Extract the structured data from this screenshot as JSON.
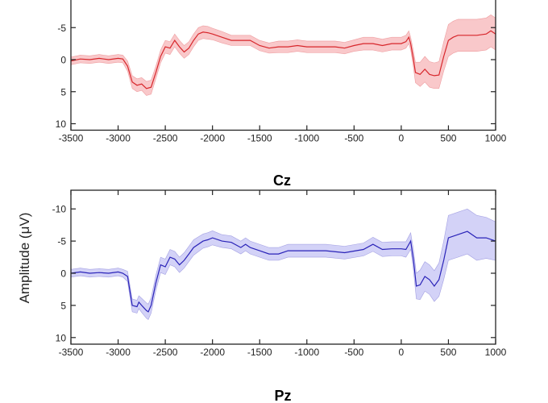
{
  "chart_data": [
    {
      "type": "line",
      "title": "",
      "xlabel": "",
      "ylabel": "Amplitude (μV)",
      "xlim": [
        -3500,
        1000
      ],
      "ylim": [
        -12.9,
        11
      ],
      "y_inverted": true,
      "xticks": [
        "-3500",
        "-3000",
        "-2500",
        "-2000",
        "-1500",
        "-1000",
        "-500",
        "0",
        "500",
        "1000"
      ],
      "yticks": [
        "-5",
        "0",
        "5",
        "10"
      ],
      "series": [
        {
          "name": "mean",
          "color": "#d7262b",
          "band_color": "#f7b6b8",
          "x": [
            -3500,
            -3400,
            -3300,
            -3200,
            -3100,
            -3000,
            -2950,
            -2900,
            -2850,
            -2800,
            -2750,
            -2700,
            -2650,
            -2600,
            -2550,
            -2500,
            -2450,
            -2400,
            -2350,
            -2300,
            -2250,
            -2200,
            -2150,
            -2100,
            -2050,
            -2000,
            -1900,
            -1800,
            -1700,
            -1600,
            -1500,
            -1400,
            -1300,
            -1200,
            -1100,
            -1000,
            -900,
            -800,
            -700,
            -600,
            -500,
            -400,
            -300,
            -200,
            -100,
            0,
            50,
            80,
            100,
            130,
            150,
            200,
            250,
            300,
            350,
            400,
            450,
            500,
            550,
            600,
            700,
            800,
            900,
            950,
            1000
          ],
          "y": [
            0.2,
            -0.1,
            0,
            -0.2,
            0,
            -0.2,
            -0.1,
            1,
            3.5,
            4,
            3.8,
            4.5,
            4.3,
            2,
            -0.5,
            -2,
            -1.8,
            -3,
            -2,
            -1.2,
            -1.8,
            -3,
            -4,
            -4.3,
            -4.2,
            -4,
            -3.5,
            -3,
            -3,
            -3,
            -2.2,
            -1.8,
            -2,
            -2,
            -2.2,
            -2,
            -2,
            -2,
            -2,
            -1.8,
            -2.2,
            -2.5,
            -2.5,
            -2.2,
            -2.5,
            -2.5,
            -2.8,
            -3.5,
            -2.5,
            0,
            2,
            2.3,
            1.5,
            2.3,
            2.5,
            2.4,
            -0.5,
            -3,
            -3.5,
            -3.8,
            -3.8,
            -3.8,
            -4,
            -4.5,
            -4
          ],
          "band_halfwidth": [
            0.6,
            0.6,
            0.6,
            0.6,
            0.6,
            0.6,
            0.6,
            0.8,
            1,
            1,
            1,
            1.1,
            1.1,
            1,
            1,
            1,
            1,
            1,
            1,
            1,
            1,
            1,
            1,
            1,
            1,
            0.9,
            0.9,
            0.8,
            0.8,
            0.8,
            0.8,
            0.8,
            0.9,
            0.9,
            0.9,
            0.9,
            0.9,
            0.9,
            0.9,
            0.9,
            0.9,
            1,
            1,
            1,
            1,
            1,
            1,
            1,
            1,
            1.3,
            1.6,
            1.9,
            2,
            2,
            2,
            2.1,
            2.3,
            2.5,
            2.5,
            2.5,
            2.5,
            2.5,
            2.5,
            2.5,
            2.5
          ]
        }
      ]
    },
    {
      "type": "line",
      "title": "Cz",
      "xlabel": "",
      "ylabel": "Amplitude (μV)",
      "xlim": [
        -3500,
        1000
      ],
      "ylim": [
        -12.9,
        11
      ],
      "y_inverted": true,
      "xticks": [
        "-3500",
        "-3000",
        "-2500",
        "-2000",
        "-1500",
        "-1000",
        "-500",
        "0",
        "500",
        "1000"
      ],
      "yticks": [
        "-10",
        "-5",
        "0",
        "5",
        "10"
      ],
      "series": [
        {
          "name": "mean",
          "color": "#2a23b8",
          "band_color": "#c4c3f4",
          "x": [
            -3500,
            -3400,
            -3300,
            -3200,
            -3100,
            -3000,
            -2950,
            -2900,
            -2850,
            -2800,
            -2780,
            -2750,
            -2700,
            -2680,
            -2650,
            -2600,
            -2550,
            -2500,
            -2450,
            -2400,
            -2350,
            -2300,
            -2250,
            -2200,
            -2100,
            -2050,
            -2000,
            -1900,
            -1800,
            -1700,
            -1650,
            -1600,
            -1500,
            -1400,
            -1300,
            -1200,
            -1000,
            -800,
            -600,
            -400,
            -300,
            -200,
            -100,
            0,
            50,
            100,
            130,
            160,
            200,
            250,
            300,
            350,
            400,
            450,
            500,
            600,
            700,
            800,
            900,
            1000
          ],
          "y": [
            0,
            -0.2,
            0,
            -0.1,
            0,
            -0.2,
            0,
            0.5,
            5,
            5.2,
            4.5,
            5,
            5.8,
            6,
            5,
            1.5,
            -1.3,
            -1,
            -2.5,
            -2.2,
            -1.3,
            -2,
            -3,
            -4,
            -5,
            -5.2,
            -5.5,
            -5,
            -4.8,
            -4,
            -4.5,
            -4,
            -3.5,
            -3,
            -3,
            -3.5,
            -3.5,
            -3.5,
            -3.2,
            -3.7,
            -4.5,
            -3.7,
            -3.8,
            -3.8,
            -3.7,
            -5,
            -2,
            2,
            1.8,
            0.5,
            1,
            2,
            1,
            -2,
            -5.5,
            -6,
            -6.5,
            -5.5,
            -5.5,
            -5
          ],
          "band_halfwidth": [
            0.6,
            0.6,
            0.6,
            0.6,
            0.6,
            0.6,
            0.6,
            0.8,
            1,
            1,
            1,
            1.1,
            1.2,
            1.2,
            1.2,
            1.2,
            1.2,
            1.2,
            1.2,
            1.2,
            1.2,
            1.2,
            1.2,
            1.2,
            1.1,
            1.1,
            1.1,
            1,
            1,
            1,
            1,
            1,
            1,
            1,
            1,
            1,
            1,
            1,
            1,
            1,
            1.1,
            1.1,
            1.1,
            1.1,
            1.2,
            1.3,
            1.6,
            2,
            2.3,
            2.3,
            2.3,
            2.4,
            2.6,
            3,
            3.5,
            3.5,
            3.5,
            3.5,
            3.2,
            3
          ]
        }
      ]
    }
  ],
  "panel_titles": {
    "lower": "Cz",
    "next": "Pz"
  },
  "ylabel": "Amplitude (μV)"
}
